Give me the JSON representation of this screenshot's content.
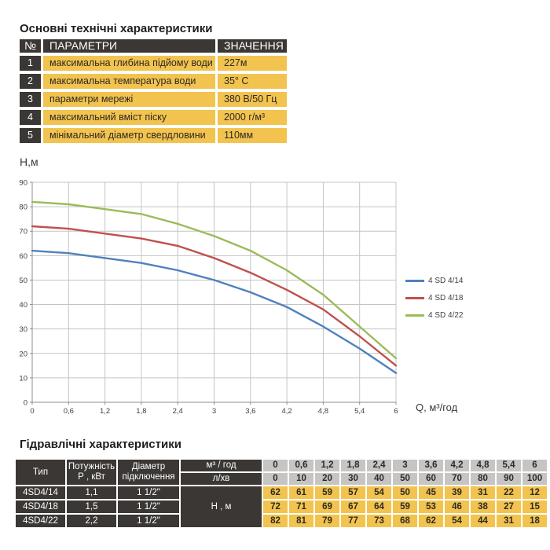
{
  "section1": {
    "title": "Основні технічні характеристики",
    "table": {
      "headers": {
        "num": "№",
        "param": "ПАРАМЕТРИ",
        "value": "ЗНАЧЕННЯ"
      },
      "rows": [
        {
          "num": "1",
          "param": "максимальна глибина підйому води",
          "value": "227м"
        },
        {
          "num": "2",
          "param": "максимальна температура води",
          "value": "35° С"
        },
        {
          "num": "3",
          "param": "параметри мережі",
          "value": "380 В/50 Гц"
        },
        {
          "num": "4",
          "param": "максимальний вміст піску",
          "value": "2000 г/м³"
        },
        {
          "num": "5",
          "param": "мінімальний діаметр свердловини",
          "value": "110мм"
        }
      ]
    }
  },
  "chart_data": {
    "type": "line",
    "x": [
      0,
      0.6,
      1.2,
      1.8,
      2.4,
      3,
      3.6,
      4.2,
      4.8,
      5.4,
      6
    ],
    "x_labels": [
      "0",
      "0,6",
      "1,2",
      "1,8",
      "2,4",
      "3",
      "3,6",
      "4,2",
      "4,8",
      "5,4",
      "6"
    ],
    "xlabel": "Q,  м³/год",
    "ylabel": "Н,м",
    "ylim": [
      0,
      90
    ],
    "ytick_step": 10,
    "grid": true,
    "legend_position": "right",
    "series": [
      {
        "name": "4 SD 4/14",
        "color": "#4f81bd",
        "values": [
          62,
          61,
          59,
          57,
          54,
          50,
          45,
          39,
          31,
          22,
          12
        ]
      },
      {
        "name": "4 SD 4/18",
        "color": "#c0504d",
        "values": [
          72,
          71,
          69,
          67,
          64,
          59,
          53,
          46,
          38,
          27,
          15
        ]
      },
      {
        "name": "4 SD 4/22",
        "color": "#9bbb59",
        "values": [
          82,
          81,
          79,
          77,
          73,
          68,
          62,
          54,
          44,
          31,
          18
        ]
      }
    ]
  },
  "section2": {
    "title": "Гідравлічні характеристики",
    "table": {
      "col_type": "Тип",
      "col_power_line1": "Потужність",
      "col_power_line2": "Р , кВт",
      "col_diam_line1": "Діаметр",
      "col_diam_line2": "підключення",
      "unit_m3": "м³ / год",
      "unit_lmin": "л/хв",
      "h_label": "Н , м",
      "flow_m3": [
        "0",
        "0,6",
        "1,2",
        "1,8",
        "2,4",
        "3",
        "3,6",
        "4,2",
        "4,8",
        "5,4",
        "6"
      ],
      "flow_lmin": [
        "0",
        "10",
        "20",
        "30",
        "40",
        "50",
        "60",
        "70",
        "80",
        "90",
        "100"
      ],
      "rows": [
        {
          "type": "4SD4/14",
          "power": "1,1",
          "diameter": "1 1/2\"",
          "h_values": [
            "62",
            "61",
            "59",
            "57",
            "54",
            "50",
            "45",
            "39",
            "31",
            "22",
            "12"
          ]
        },
        {
          "type": "4SD4/18",
          "power": "1,5",
          "diameter": "1 1/2\"",
          "h_values": [
            "72",
            "71",
            "69",
            "67",
            "64",
            "59",
            "53",
            "46",
            "38",
            "27",
            "15"
          ]
        },
        {
          "type": "4SD4/22",
          "power": "2,2",
          "diameter": "1 1/2\"",
          "h_values": [
            "82",
            "81",
            "79",
            "77",
            "73",
            "68",
            "62",
            "54",
            "44",
            "31",
            "18"
          ]
        }
      ]
    }
  },
  "colors": {
    "dark_cell": "#3b3734",
    "yellow_cell": "#f2c34e",
    "gray_cell": "#c6c5c3",
    "grid_line": "#c4c4c4",
    "axis_line": "#8c8c8c"
  }
}
